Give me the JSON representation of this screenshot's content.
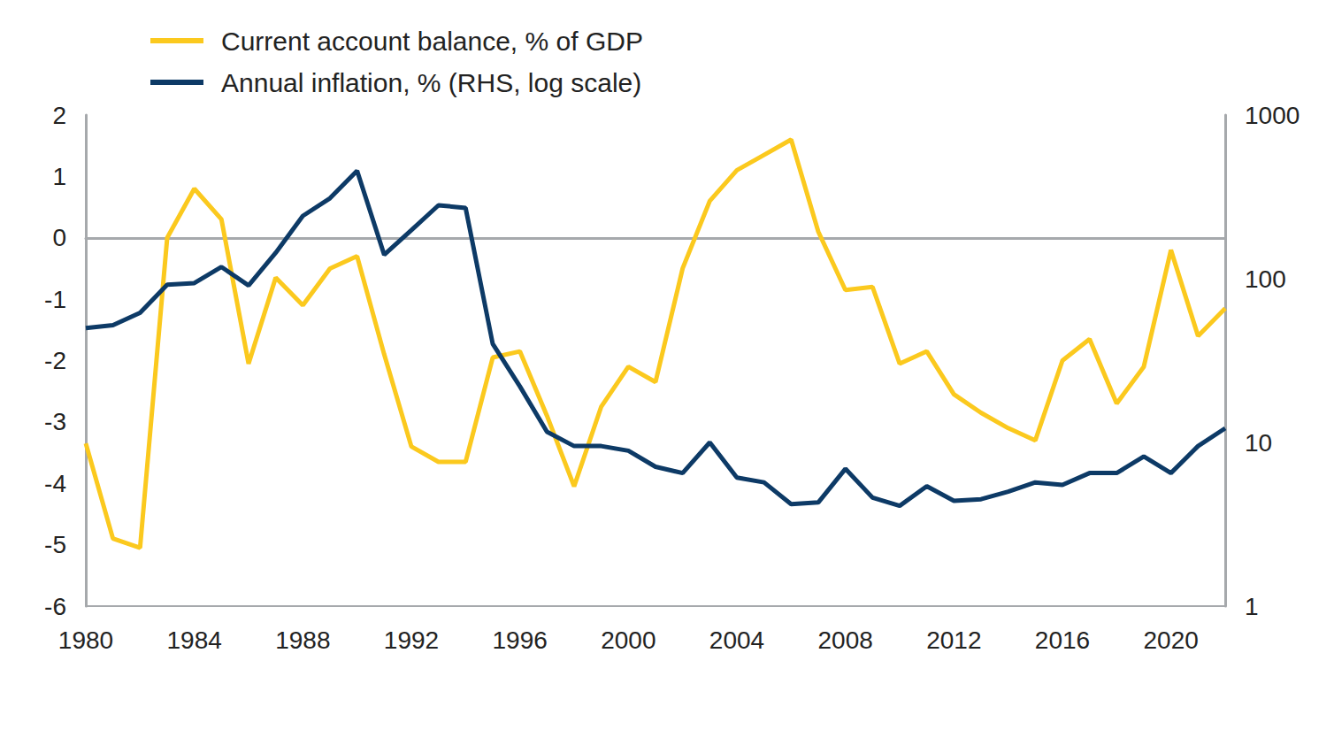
{
  "chart_data": {
    "type": "line",
    "x": [
      1980,
      1981,
      1982,
      1983,
      1984,
      1985,
      1986,
      1987,
      1988,
      1989,
      1990,
      1991,
      1992,
      1993,
      1994,
      1995,
      1996,
      1997,
      1998,
      1999,
      2000,
      2001,
      2002,
      2003,
      2004,
      2005,
      2006,
      2007,
      2008,
      2009,
      2010,
      2011,
      2012,
      2013,
      2014,
      2015,
      2016,
      2017,
      2018,
      2019,
      2020,
      2021,
      2022
    ],
    "xlim": [
      1980,
      2022
    ],
    "xticks": [
      1980,
      1984,
      1988,
      1992,
      1996,
      2000,
      2004,
      2008,
      2012,
      2016,
      2020
    ],
    "ylim": [
      -6,
      2
    ],
    "yticks": [
      -6,
      -5,
      -4,
      -3,
      -2,
      -1,
      0,
      1,
      2
    ],
    "y2lim": [
      1,
      1000
    ],
    "y2ticks": [
      1,
      10,
      100,
      1000
    ],
    "log": "y2",
    "grid": false,
    "legend": "top-left",
    "series": [
      {
        "name": "Current account balance, % of GDP",
        "color": "#FBC91E",
        "values": [
          -3.35,
          -4.9,
          -5.05,
          0,
          0.8,
          0.3,
          -2.05,
          -0.65,
          -1.1,
          -0.5,
          -0.3,
          -1.9,
          -3.4,
          -3.65,
          -3.65,
          -1.95,
          -1.85,
          -2.9,
          -4.05,
          -2.75,
          -2.1,
          -2.35,
          -0.5,
          0.6,
          1.1,
          1.35,
          1.6,
          0.1,
          -0.85,
          -0.8,
          -2.05,
          -1.85,
          -2.55,
          -2.85,
          -3.1,
          -3.3,
          -2.0,
          -1.65,
          -2.7,
          -2.1,
          -0.2,
          -1.6,
          -1.15
        ]
      },
      {
        "name": "Annual inflation, % (RHS, log scale)",
        "color": "#0D3A66",
        "axis": "y2",
        "values": [
          50,
          52,
          62,
          92,
          94,
          118,
          91,
          144,
          242,
          310,
          457,
          140,
          198,
          281,
          271,
          40,
          22,
          11.6,
          9.5,
          9.5,
          8.9,
          7.1,
          6.5,
          10,
          6.1,
          5.7,
          4.2,
          4.3,
          6.9,
          4.6,
          4.1,
          5.4,
          4.4,
          4.5,
          5.0,
          5.7,
          5.5,
          6.5,
          6.5,
          8.2,
          6.5,
          9.5,
          12.2
        ]
      }
    ]
  }
}
